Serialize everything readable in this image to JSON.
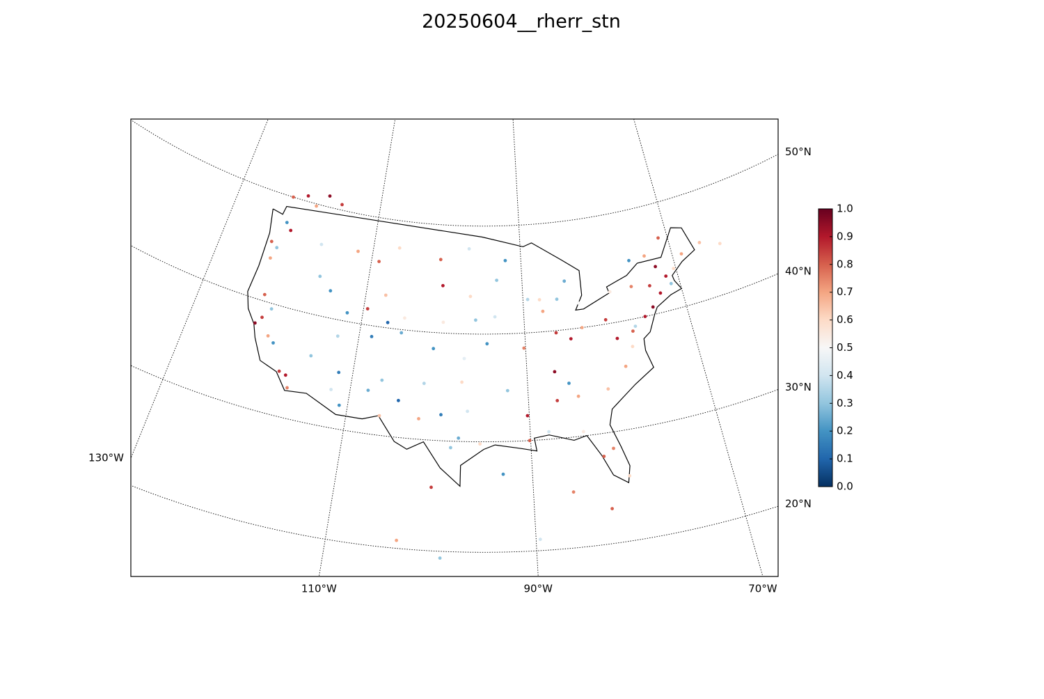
{
  "chart_data": {
    "type": "map",
    "title": "20250604__rherr_stn",
    "xticks": [
      {
        "value": -130,
        "label": "130°W"
      },
      {
        "value": -110,
        "label": "110°W"
      },
      {
        "value": -90,
        "label": "90°W"
      },
      {
        "value": -70,
        "label": "70°W"
      }
    ],
    "yticks": [
      {
        "value": 20,
        "label": "20°N"
      },
      {
        "value": 30,
        "label": "30°N"
      },
      {
        "value": 40,
        "label": "40°N"
      },
      {
        "value": 50,
        "label": "50°N"
      }
    ],
    "colorbar": {
      "cmap": "RdBu_r",
      "clim": [
        0,
        1
      ],
      "ticks": [
        {
          "value": 0,
          "label": "0.0"
        },
        0.1,
        0.2,
        0.3,
        0.4,
        0.5,
        0.6,
        0.7,
        0.8,
        0.9,
        {
          "value": 1,
          "label": "1.0"
        }
      ]
    },
    "stations": {
      "lon": [
        -123.5,
        -122.6,
        -123.0,
        -122.3,
        -121.5,
        -122.4,
        -121.8,
        -120.5,
        -119.7,
        -118.2,
        -117.4,
        -116.9,
        -121.0,
        -122.3,
        -120.5,
        -117.5,
        -115.5,
        -119.0,
        -122.5,
        -117.0,
        -116.2,
        -114.5,
        -112.0,
        -109.0,
        -106.5,
        -111.9,
        -112.5,
        -108.5,
        -106.8,
        -105.0,
        -107.5,
        -104.8,
        -109.5,
        -115.1,
        -112.1,
        -110.9,
        -111.6,
        -106.6,
        -106.4,
        -104.5,
        -108.0,
        -100.8,
        -97.0,
        -96.7,
        -100.3,
        -96.0,
        -100.0,
        -97.3,
        -101.0,
        -97.5,
        -101.8,
        -98.5,
        -97.7,
        -96.8,
        -95.4,
        -99.7,
        -102.1,
        -93.3,
        -92.1,
        -89.4,
        -87.9,
        -87.6,
        -93.6,
        -90.2,
        -94.6,
        -86.2,
        -83.0,
        -84.5,
        -85.7,
        -83.0,
        -84.5,
        -92.3,
        -90.1,
        -90.2,
        -86.8,
        -86.8,
        -84.4,
        -85.3,
        -81.0,
        -82.5,
        -81.4,
        -80.2,
        -84.3,
        -88.0,
        -80.0,
        -79.0,
        -77.0,
        -76.6,
        -78.6,
        -77.4,
        -75.2,
        -74.0,
        -73.8,
        -72.7,
        -71.1,
        -72.5,
        -71.5,
        -70.3,
        -68.8,
        -76.1,
        -78.9,
        -73.6,
        -75.7,
        -71.2,
        -66.1,
        -63.6,
        -100.3,
        -103.3,
        -99.1,
        -89.6,
        -82.4,
        -66.1,
        -93.0,
        -86.0
      ],
      "lat": [
        45.5,
        45.1,
        44.0,
        47.6,
        47.0,
        37.8,
        38.5,
        37.0,
        36.5,
        34.1,
        33.9,
        32.8,
        39.5,
        40.6,
        50.5,
        51.0,
        50.5,
        49.8,
        50.0,
        46.5,
        43.6,
        42.5,
        46.6,
        46.0,
        47.5,
        40.8,
        38.5,
        39.0,
        40.5,
        39.7,
        43.0,
        41.1,
        41.5,
        36.2,
        33.5,
        32.2,
        35.2,
        35.1,
        31.8,
        33.4,
        34.0,
        46.8,
        47.9,
        43.5,
        44.4,
        41.3,
        41.0,
        37.7,
        38.5,
        35.5,
        35.2,
        29.4,
        30.3,
        32.8,
        29.8,
        32.4,
        31.9,
        45.0,
        46.8,
        43.1,
        43.0,
        41.9,
        41.6,
        38.6,
        39.1,
        39.8,
        40.0,
        39.1,
        42.9,
        42.3,
        44.5,
        34.7,
        30.0,
        32.3,
        33.5,
        36.2,
        33.7,
        35.0,
        34.0,
        27.9,
        28.5,
        25.8,
        30.4,
        30.7,
        40.4,
        38.5,
        38.9,
        39.3,
        35.8,
        37.5,
        40.0,
        40.7,
        42.7,
        41.8,
        42.4,
        44.3,
        43.2,
        43.7,
        44.8,
        43.0,
        42.9,
        45.5,
        45.4,
        46.8,
        45.3,
        44.6,
        25.7,
        20.7,
        19.4,
        21.0,
        23.1,
        18.4,
        27.0,
        25.0
      ],
      "values": [
        0.8,
        0.3,
        0.7,
        0.2,
        0.9,
        0.95,
        0.85,
        0.7,
        0.2,
        0.85,
        0.9,
        0.75,
        0.3,
        0.8,
        0.9,
        0.95,
        0.85,
        0.7,
        0.8,
        0.4,
        0.3,
        0.2,
        0.7,
        0.8,
        0.6,
        0.2,
        0.35,
        0.15,
        0.1,
        0.25,
        0.65,
        0.55,
        0.85,
        0.3,
        0.4,
        0.2,
        0.15,
        0.3,
        0.65,
        0.1,
        0.25,
        0.8,
        0.4,
        0.6,
        0.9,
        0.3,
        0.55,
        0.45,
        0.2,
        0.6,
        0.35,
        0.3,
        0.25,
        0.4,
        0.6,
        0.15,
        0.7,
        0.3,
        0.2,
        0.35,
        0.6,
        0.7,
        0.4,
        0.75,
        0.2,
        0.85,
        0.7,
        0.9,
        0.3,
        0.5,
        0.25,
        0.3,
        0.8,
        0.9,
        0.85,
        0.95,
        0.7,
        0.2,
        0.65,
        0.8,
        0.75,
        0.6,
        0.55,
        0.4,
        0.85,
        0.9,
        0.8,
        0.35,
        0.7,
        0.6,
        0.9,
        0.95,
        0.85,
        0.9,
        0.3,
        0.95,
        0.9,
        0.6,
        0.7,
        0.75,
        0.55,
        0.7,
        0.2,
        0.8,
        0.65,
        0.6,
        0.85,
        0.7,
        0.3,
        0.4,
        0.8,
        0.6,
        0.2,
        0.75
      ]
    }
  }
}
